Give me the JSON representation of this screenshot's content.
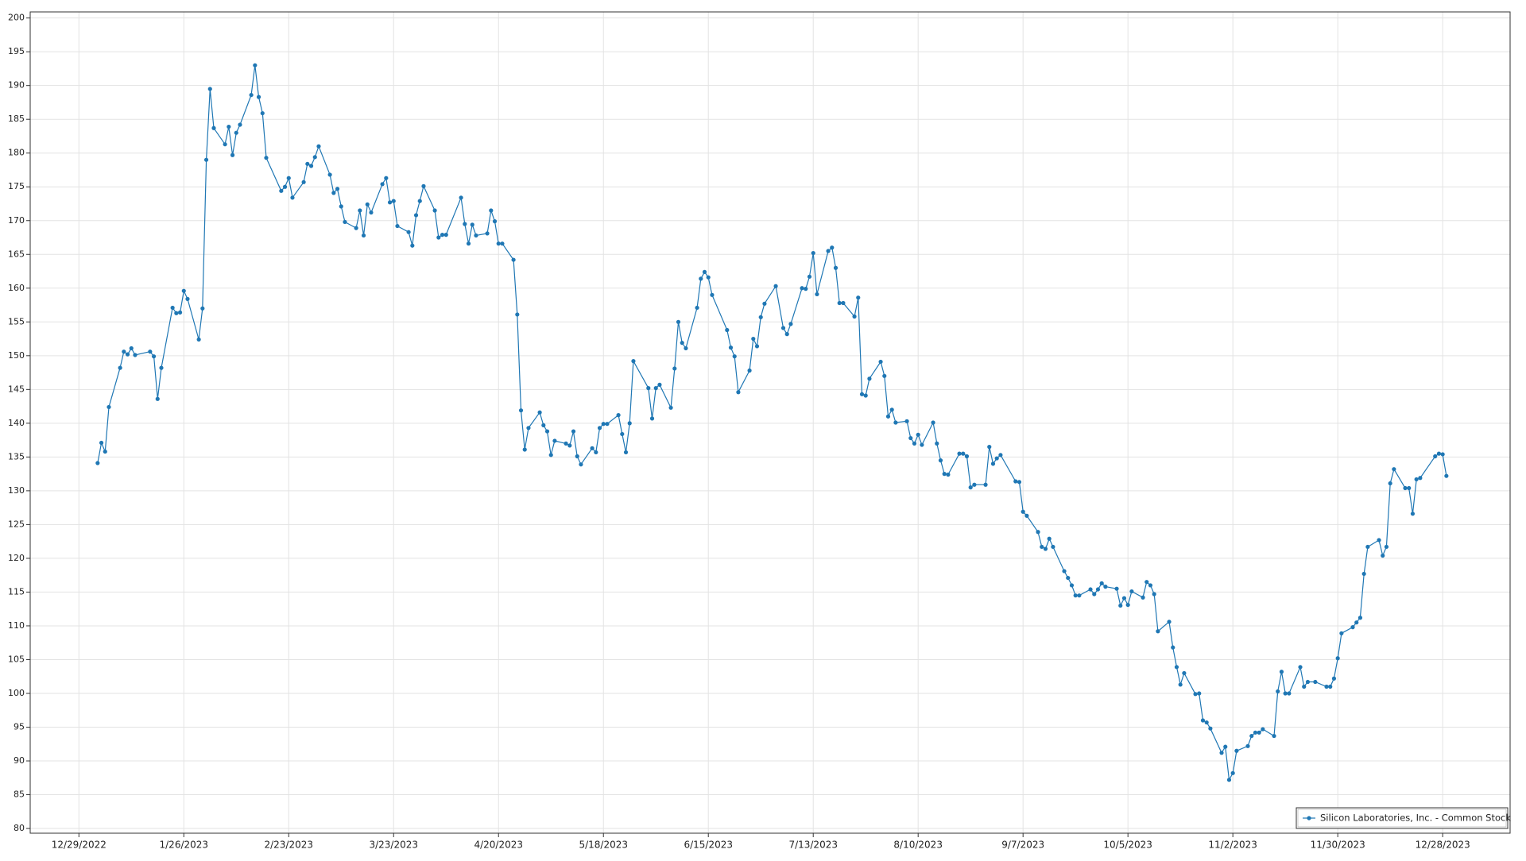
{
  "chart_data": {
    "type": "line",
    "x": [
      "2023-01-03",
      "2023-01-04",
      "2023-01-05",
      "2023-01-06",
      "2023-01-09",
      "2023-01-10",
      "2023-01-11",
      "2023-01-12",
      "2023-01-13",
      "2023-01-17",
      "2023-01-18",
      "2023-01-19",
      "2023-01-20",
      "2023-01-23",
      "2023-01-24",
      "2023-01-25",
      "2023-01-26",
      "2023-01-27",
      "2023-01-30",
      "2023-01-31",
      "2023-02-01",
      "2023-02-02",
      "2023-02-03",
      "2023-02-06",
      "2023-02-07",
      "2023-02-08",
      "2023-02-09",
      "2023-02-10",
      "2023-02-13",
      "2023-02-14",
      "2023-02-15",
      "2023-02-16",
      "2023-02-17",
      "2023-02-21",
      "2023-02-22",
      "2023-02-23",
      "2023-02-24",
      "2023-02-27",
      "2023-02-28",
      "2023-03-01",
      "2023-03-02",
      "2023-03-03",
      "2023-03-06",
      "2023-03-07",
      "2023-03-08",
      "2023-03-09",
      "2023-03-10",
      "2023-03-13",
      "2023-03-14",
      "2023-03-15",
      "2023-03-16",
      "2023-03-17",
      "2023-03-20",
      "2023-03-21",
      "2023-03-22",
      "2023-03-23",
      "2023-03-24",
      "2023-03-27",
      "2023-03-28",
      "2023-03-29",
      "2023-03-30",
      "2023-03-31",
      "2023-04-03",
      "2023-04-04",
      "2023-04-05",
      "2023-04-06",
      "2023-04-10",
      "2023-04-11",
      "2023-04-12",
      "2023-04-13",
      "2023-04-14",
      "2023-04-17",
      "2023-04-18",
      "2023-04-19",
      "2023-04-20",
      "2023-04-21",
      "2023-04-24",
      "2023-04-25",
      "2023-04-26",
      "2023-04-27",
      "2023-04-28",
      "2023-05-01",
      "2023-05-02",
      "2023-05-03",
      "2023-05-04",
      "2023-05-05",
      "2023-05-08",
      "2023-05-09",
      "2023-05-10",
      "2023-05-11",
      "2023-05-12",
      "2023-05-15",
      "2023-05-16",
      "2023-05-17",
      "2023-05-18",
      "2023-05-19",
      "2023-05-22",
      "2023-05-23",
      "2023-05-24",
      "2023-05-25",
      "2023-05-26",
      "2023-05-30",
      "2023-05-31",
      "2023-06-01",
      "2023-06-02",
      "2023-06-05",
      "2023-06-06",
      "2023-06-07",
      "2023-06-08",
      "2023-06-09",
      "2023-06-12",
      "2023-06-13",
      "2023-06-14",
      "2023-06-15",
      "2023-06-16",
      "2023-06-20",
      "2023-06-21",
      "2023-06-22",
      "2023-06-23",
      "2023-06-26",
      "2023-06-27",
      "2023-06-28",
      "2023-06-29",
      "2023-06-30",
      "2023-07-03",
      "2023-07-05",
      "2023-07-06",
      "2023-07-07",
      "2023-07-10",
      "2023-07-11",
      "2023-07-12",
      "2023-07-13",
      "2023-07-14",
      "2023-07-17",
      "2023-07-18",
      "2023-07-19",
      "2023-07-20",
      "2023-07-21",
      "2023-07-24",
      "2023-07-25",
      "2023-07-26",
      "2023-07-27",
      "2023-07-28",
      "2023-07-31",
      "2023-08-01",
      "2023-08-02",
      "2023-08-03",
      "2023-08-04",
      "2023-08-07",
      "2023-08-08",
      "2023-08-09",
      "2023-08-10",
      "2023-08-11",
      "2023-08-14",
      "2023-08-15",
      "2023-08-16",
      "2023-08-17",
      "2023-08-18",
      "2023-08-21",
      "2023-08-22",
      "2023-08-23",
      "2023-08-24",
      "2023-08-25",
      "2023-08-28",
      "2023-08-29",
      "2023-08-30",
      "2023-08-31",
      "2023-09-01",
      "2023-09-05",
      "2023-09-06",
      "2023-09-07",
      "2023-09-08",
      "2023-09-11",
      "2023-09-12",
      "2023-09-13",
      "2023-09-14",
      "2023-09-15",
      "2023-09-18",
      "2023-09-19",
      "2023-09-20",
      "2023-09-21",
      "2023-09-22",
      "2023-09-25",
      "2023-09-26",
      "2023-09-27",
      "2023-09-28",
      "2023-09-29",
      "2023-10-02",
      "2023-10-03",
      "2023-10-04",
      "2023-10-05",
      "2023-10-06",
      "2023-10-09",
      "2023-10-10",
      "2023-10-11",
      "2023-10-12",
      "2023-10-13",
      "2023-10-16",
      "2023-10-17",
      "2023-10-18",
      "2023-10-19",
      "2023-10-20",
      "2023-10-23",
      "2023-10-24",
      "2023-10-25",
      "2023-10-26",
      "2023-10-27",
      "2023-10-30",
      "2023-10-31",
      "2023-11-01",
      "2023-11-02",
      "2023-11-03",
      "2023-11-06",
      "2023-11-07",
      "2023-11-08",
      "2023-11-09",
      "2023-11-10",
      "2023-11-13",
      "2023-11-14",
      "2023-11-15",
      "2023-11-16",
      "2023-11-17",
      "2023-11-20",
      "2023-11-21",
      "2023-11-22",
      "2023-11-24",
      "2023-11-27",
      "2023-11-28",
      "2023-11-29",
      "2023-11-30",
      "2023-12-01",
      "2023-12-04",
      "2023-12-05",
      "2023-12-06",
      "2023-12-07",
      "2023-12-08",
      "2023-12-11",
      "2023-12-12",
      "2023-12-13",
      "2023-12-14",
      "2023-12-15",
      "2023-12-18",
      "2023-12-19",
      "2023-12-20",
      "2023-12-21",
      "2023-12-22",
      "2023-12-26",
      "2023-12-27",
      "2023-12-28",
      "2023-12-29"
    ],
    "series": [
      {
        "name": "Silicon Laboratories, Inc. - Common Stock",
        "color": "#1f77b4",
        "values": [
          134.1,
          137.1,
          135.8,
          142.4,
          148.2,
          150.6,
          150.2,
          151.1,
          150.1,
          150.6,
          149.9,
          143.6,
          148.2,
          157.1,
          156.3,
          156.4,
          159.6,
          158.4,
          152.4,
          157.0,
          179.0,
          189.5,
          183.7,
          181.3,
          183.9,
          179.7,
          183.0,
          184.2,
          188.6,
          193.0,
          188.3,
          185.9,
          179.3,
          174.4,
          175.0,
          176.3,
          173.4,
          175.7,
          178.4,
          178.1,
          179.4,
          181.0,
          176.8,
          174.1,
          174.7,
          172.1,
          169.8,
          168.9,
          171.5,
          167.8,
          172.4,
          171.2,
          175.4,
          176.3,
          172.7,
          172.9,
          169.2,
          168.3,
          166.3,
          170.8,
          172.9,
          175.1,
          171.5,
          167.5,
          167.9,
          167.9,
          173.4,
          169.5,
          166.6,
          169.4,
          167.8,
          168.1,
          171.5,
          169.9,
          166.6,
          166.6,
          164.2,
          156.1,
          141.9,
          136.1,
          139.3,
          141.6,
          139.7,
          138.8,
          135.3,
          137.4,
          137.0,
          136.7,
          138.8,
          135.1,
          133.9,
          136.3,
          135.7,
          139.3,
          139.9,
          139.9,
          141.2,
          138.4,
          135.7,
          140.0,
          149.2,
          145.2,
          140.7,
          145.2,
          145.7,
          142.3,
          148.1,
          155.0,
          151.9,
          151.1,
          157.1,
          161.4,
          162.4,
          161.6,
          159.0,
          153.8,
          151.2,
          149.9,
          144.6,
          147.8,
          152.5,
          151.4,
          155.7,
          157.7,
          160.3,
          154.1,
          153.2,
          154.7,
          160.0,
          159.9,
          161.7,
          165.2,
          159.1,
          165.5,
          166.0,
          163.0,
          157.8,
          157.8,
          155.8,
          158.6,
          144.3,
          144.1,
          146.6,
          149.1,
          147.0,
          141.0,
          142.0,
          140.1,
          140.3,
          137.8,
          137.0,
          138.3,
          136.8,
          140.1,
          137.0,
          134.5,
          132.5,
          132.4,
          135.5,
          135.5,
          135.1,
          130.5,
          130.9,
          130.9,
          136.5,
          134.0,
          134.8,
          135.3,
          131.4,
          131.3,
          126.9,
          126.3,
          123.9,
          121.7,
          121.4,
          122.9,
          121.7,
          118.1,
          117.1,
          116.0,
          114.5,
          114.5,
          115.4,
          114.7,
          115.4,
          116.3,
          115.8,
          115.5,
          113.0,
          114.1,
          113.1,
          115.1,
          114.2,
          116.5,
          116.0,
          114.7,
          109.2,
          110.6,
          106.8,
          103.9,
          101.3,
          103.0,
          99.9,
          100.0,
          96.0,
          95.7,
          94.8,
          91.2,
          92.1,
          87.2,
          88.2,
          91.5,
          92.2,
          93.7,
          94.2,
          94.2,
          94.7,
          93.7,
          100.3,
          103.2,
          100.0,
          100.0,
          103.9,
          101.0,
          101.7,
          101.7,
          101.0,
          101.0,
          102.2,
          105.2,
          108.9,
          109.8,
          110.5,
          111.2,
          117.7,
          121.7,
          122.7,
          120.4,
          121.7,
          131.1,
          133.2,
          130.4,
          130.4,
          126.6,
          131.7,
          131.9,
          135.1,
          135.5,
          135.4,
          132.2
        ]
      }
    ],
    "xlim": [
      "2022-12-16",
      "2024-01-15"
    ],
    "xticks": [
      {
        "value": "2022-12-29",
        "label": "12/29/2022"
      },
      {
        "value": "2023-01-26",
        "label": "1/26/2023"
      },
      {
        "value": "2023-02-23",
        "label": "2/23/2023"
      },
      {
        "value": "2023-03-23",
        "label": "3/23/2023"
      },
      {
        "value": "2023-04-20",
        "label": "4/20/2023"
      },
      {
        "value": "2023-05-18",
        "label": "5/18/2023"
      },
      {
        "value": "2023-06-15",
        "label": "6/15/2023"
      },
      {
        "value": "2023-07-13",
        "label": "7/13/2023"
      },
      {
        "value": "2023-08-10",
        "label": "8/10/2023"
      },
      {
        "value": "2023-09-07",
        "label": "9/7/2023"
      },
      {
        "value": "2023-10-05",
        "label": "10/5/2023"
      },
      {
        "value": "2023-11-02",
        "label": "11/2/2023"
      },
      {
        "value": "2023-11-30",
        "label": "11/30/2023"
      },
      {
        "value": "2023-12-28",
        "label": "12/28/2023"
      }
    ],
    "ylim": [
      79.3,
      200.9
    ],
    "yticks": [
      80,
      85,
      90,
      95,
      100,
      105,
      110,
      115,
      120,
      125,
      130,
      135,
      140,
      145,
      150,
      155,
      160,
      165,
      170,
      175,
      180,
      185,
      190,
      195,
      200
    ],
    "grid": true,
    "legend": "lower right"
  }
}
